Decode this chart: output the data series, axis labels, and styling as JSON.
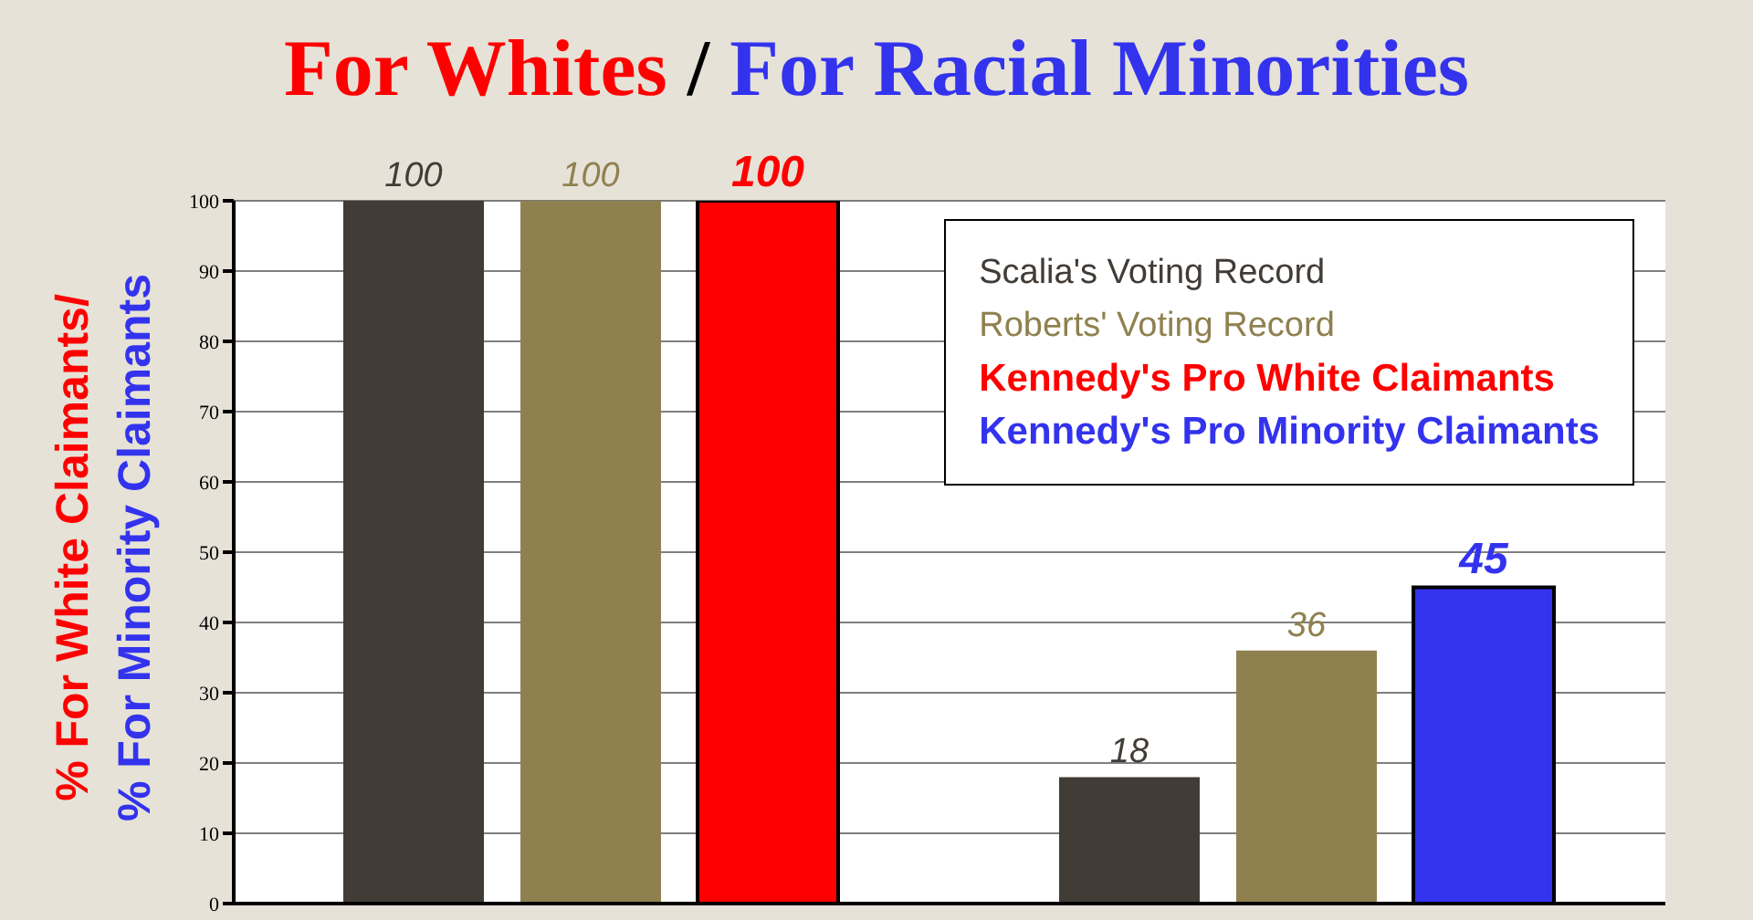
{
  "chart_data": {
    "type": "bar",
    "title": "For Whites / For Racial Minorities",
    "ylabel": "% For White Claimants/\n% For Minority Claimants",
    "categories": [
      null,
      null
    ],
    "series": [
      {
        "name": "Scalia's Voting Record",
        "color": "#423c37",
        "values": [
          100,
          18
        ]
      },
      {
        "name": "Roberts' Voting Record",
        "color": "#8f814f",
        "values": [
          100,
          36
        ]
      },
      {
        "name": "Kennedy's Pro White Claimants",
        "color": "#ff0000",
        "values": [
          100,
          null
        ]
      },
      {
        "name": "Kennedy's Pro Minority Claimants",
        "color": "#3333ee",
        "values": [
          null,
          45
        ]
      }
    ],
    "ylim": [
      0,
      100
    ],
    "yticks": [
      0,
      10,
      20,
      30,
      40,
      50,
      60,
      70,
      80,
      90,
      100
    ],
    "grid": "y",
    "legend": "top right",
    "data_labels": true
  }
}
